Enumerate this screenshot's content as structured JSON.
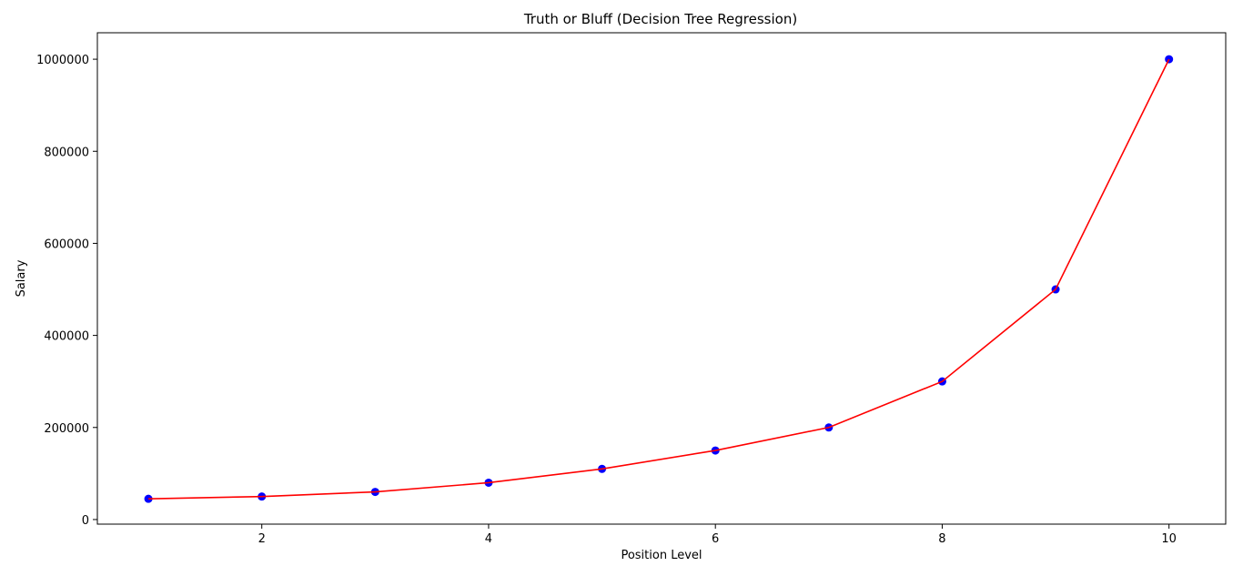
{
  "chart_data": {
    "type": "line",
    "title": "Truth or Bluff (Decision Tree Regression)",
    "xlabel": "Position Level",
    "ylabel": "Salary",
    "xlim": [
      0.55,
      10.5
    ],
    "ylim": [
      -10000,
      1057500
    ],
    "xticks": [
      2,
      4,
      6,
      8,
      10
    ],
    "yticks": [
      0,
      200000,
      400000,
      600000,
      800000,
      1000000
    ],
    "grid": false,
    "series": [
      {
        "kind": "scatter",
        "color": "#0000ff",
        "x": [
          1,
          2,
          3,
          4,
          5,
          6,
          7,
          8,
          9,
          10
        ],
        "y": [
          45000,
          50000,
          60000,
          80000,
          110000,
          150000,
          200000,
          300000,
          500000,
          1000000
        ]
      },
      {
        "kind": "line",
        "color": "#ff0000",
        "x": [
          1,
          2,
          3,
          4,
          5,
          6,
          7,
          8,
          9,
          10
        ],
        "y": [
          45000,
          50000,
          60000,
          80000,
          110000,
          150000,
          200000,
          300000,
          500000,
          1000000
        ]
      }
    ]
  }
}
